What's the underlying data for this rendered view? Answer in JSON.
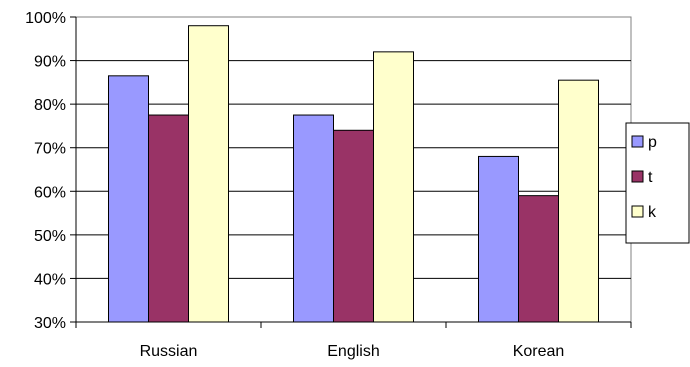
{
  "chart_data": {
    "type": "bar",
    "title": "",
    "xlabel": "",
    "ylabel": "",
    "categories": [
      "Russian",
      "English",
      "Korean"
    ],
    "series": [
      {
        "name": "p",
        "values": [
          86.5,
          77.5,
          68.0
        ],
        "color": "#9999ff"
      },
      {
        "name": "t",
        "values": [
          77.5,
          74.0,
          59.0
        ],
        "color": "#993366"
      },
      {
        "name": "k",
        "values": [
          98.0,
          92.0,
          85.5
        ],
        "color": "#ffffcc"
      }
    ],
    "ylim": [
      30,
      100
    ],
    "yticks": [
      30,
      40,
      50,
      60,
      70,
      80,
      90,
      100
    ],
    "ytick_labels": [
      "30%",
      "40%",
      "50%",
      "60%",
      "70%",
      "80%",
      "90%",
      "100%"
    ],
    "grid": true,
    "legend_position": "right"
  }
}
